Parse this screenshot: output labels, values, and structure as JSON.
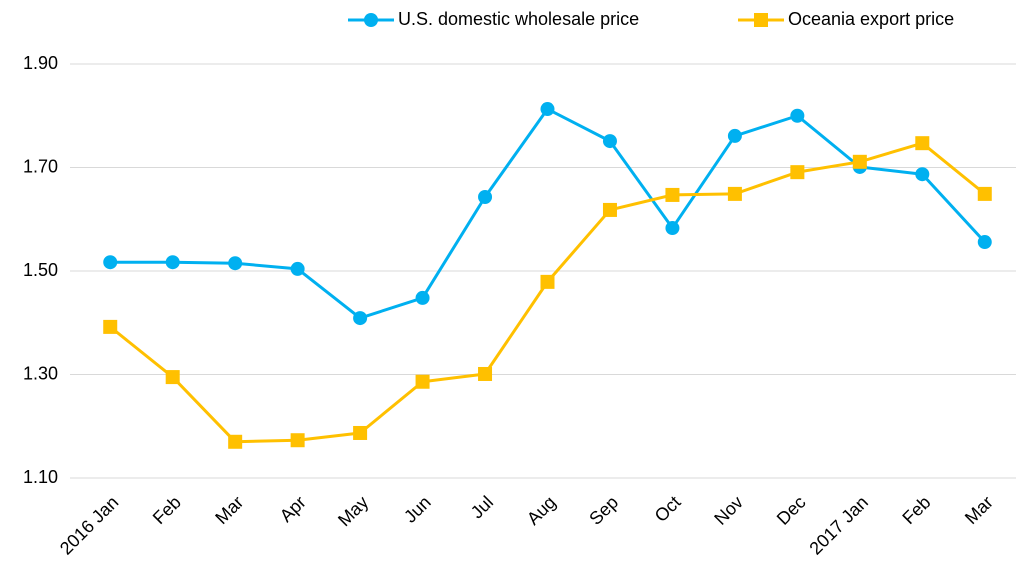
{
  "chart_data": {
    "type": "line",
    "categories": [
      "2016 Jan",
      "Feb",
      "Mar",
      "Apr",
      "May",
      "Jun",
      "Jul",
      "Aug",
      "Sep",
      "Oct",
      "Nov",
      "Dec",
      "2017 Jan",
      "Feb",
      "Mar"
    ],
    "series": [
      {
        "name": "U.S. domestic wholesale price",
        "color": "#00b0f0",
        "marker": "circle",
        "values": [
          1.517,
          1.517,
          1.515,
          1.504,
          1.409,
          1.448,
          1.643,
          1.813,
          1.751,
          1.583,
          1.761,
          1.8,
          1.701,
          1.687,
          1.556
        ]
      },
      {
        "name": "Oceania export price",
        "color": "#ffc000",
        "marker": "square",
        "values": [
          1.392,
          1.295,
          1.17,
          1.173,
          1.187,
          1.286,
          1.301,
          1.479,
          1.618,
          1.647,
          1.649,
          1.691,
          1.711,
          1.747,
          1.649
        ]
      }
    ],
    "ylim": [
      1.1,
      1.9
    ],
    "yticks": [
      {
        "value": 1.1,
        "label": "1.10"
      },
      {
        "value": 1.3,
        "label": "1.30"
      },
      {
        "value": 1.5,
        "label": "1.50"
      },
      {
        "value": 1.7,
        "label": "1.70"
      },
      {
        "value": 1.9,
        "label": "1.90"
      }
    ],
    "grid": true
  }
}
